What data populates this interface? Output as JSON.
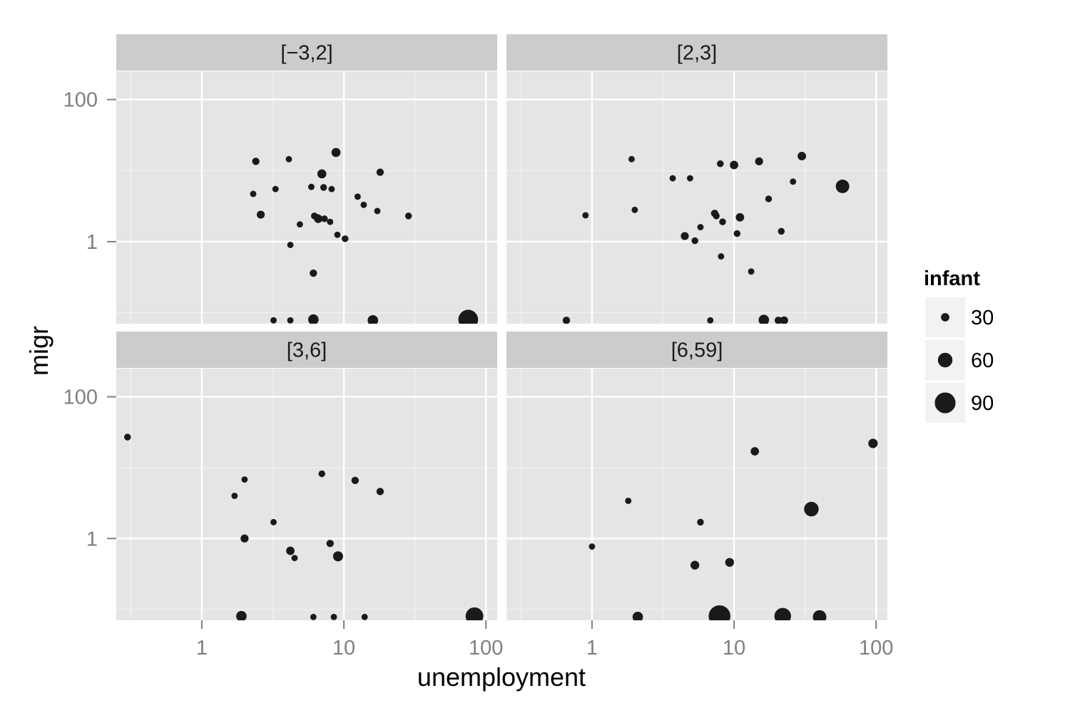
{
  "chart_data": {
    "type": "scatter",
    "xlabel": "unemployment",
    "ylabel": "migr",
    "xscale": "log10",
    "yscale": "log10",
    "xlim": [
      0.25,
      120
    ],
    "ylim": [
      0.07,
      250
    ],
    "x_ticks": [
      {
        "value": 1,
        "label": "1"
      },
      {
        "value": 10,
        "label": "10"
      },
      {
        "value": 100,
        "label": "100"
      }
    ],
    "y_ticks": [
      {
        "value": 1,
        "label": "1"
      },
      {
        "value": 100,
        "label": "100"
      }
    ],
    "grid": true,
    "panel_background": "#e5e5e5",
    "strip_background": "#cccccc",
    "point_color": "#1a1a1a",
    "legend": {
      "title": "infant",
      "position": "right",
      "size_domain": [
        10,
        100
      ],
      "entries": [
        {
          "value": 30,
          "label": "30"
        },
        {
          "value": 60,
          "label": "60"
        },
        {
          "value": 90,
          "label": "90"
        }
      ]
    },
    "facets": [
      {
        "label": "[−3,2]",
        "points": [
          {
            "x": 2.4,
            "y": 13.5,
            "infant": 25
          },
          {
            "x": 4.1,
            "y": 14.5,
            "infant": 20
          },
          {
            "x": 8.8,
            "y": 18,
            "infant": 33
          },
          {
            "x": 18,
            "y": 9.5,
            "infant": 25
          },
          {
            "x": 7,
            "y": 9,
            "infant": 33
          },
          {
            "x": 3.3,
            "y": 5.5,
            "infant": 20
          },
          {
            "x": 2.3,
            "y": 4.7,
            "infant": 20
          },
          {
            "x": 5.9,
            "y": 5.9,
            "infant": 20
          },
          {
            "x": 7.2,
            "y": 5.8,
            "infant": 22
          },
          {
            "x": 8.2,
            "y": 5.5,
            "infant": 20
          },
          {
            "x": 12.5,
            "y": 4.3,
            "infant": 20
          },
          {
            "x": 13.8,
            "y": 3.3,
            "infant": 20
          },
          {
            "x": 17.2,
            "y": 2.7,
            "infant": 20
          },
          {
            "x": 28.5,
            "y": 2.3,
            "infant": 22
          },
          {
            "x": 2.6,
            "y": 2.4,
            "infant": 28
          },
          {
            "x": 6.2,
            "y": 2.3,
            "infant": 22
          },
          {
            "x": 6.6,
            "y": 2.1,
            "infant": 30
          },
          {
            "x": 6.5,
            "y": 2.2,
            "infant": 22
          },
          {
            "x": 7.3,
            "y": 2.1,
            "infant": 22
          },
          {
            "x": 8,
            "y": 1.9,
            "infant": 20
          },
          {
            "x": 4.9,
            "y": 1.75,
            "infant": 20
          },
          {
            "x": 9,
            "y": 1.25,
            "infant": 20
          },
          {
            "x": 10.2,
            "y": 1.1,
            "infant": 22
          },
          {
            "x": 4.2,
            "y": 0.9,
            "infant": 20
          },
          {
            "x": 6.1,
            "y": 0.36,
            "infant": 25
          },
          {
            "x": 3.2,
            "y": 0.078,
            "infant": 20
          },
          {
            "x": 4.2,
            "y": 0.078,
            "infant": 20
          },
          {
            "x": 6.1,
            "y": 0.08,
            "infant": 40
          },
          {
            "x": 16,
            "y": 0.078,
            "infant": 40
          },
          {
            "x": 75,
            "y": 0.08,
            "infant": 85
          }
        ]
      },
      {
        "label": "[2,3]",
        "points": [
          {
            "x": 1.9,
            "y": 14.5,
            "infant": 20
          },
          {
            "x": 30,
            "y": 16,
            "infant": 30
          },
          {
            "x": 15,
            "y": 13.5,
            "infant": 28
          },
          {
            "x": 8,
            "y": 12.5,
            "infant": 22
          },
          {
            "x": 10,
            "y": 12,
            "infant": 30
          },
          {
            "x": 3.7,
            "y": 7.8,
            "infant": 20
          },
          {
            "x": 4.9,
            "y": 7.8,
            "infant": 20
          },
          {
            "x": 26,
            "y": 7,
            "infant": 20
          },
          {
            "x": 58,
            "y": 6,
            "infant": 55
          },
          {
            "x": 17.5,
            "y": 4,
            "infant": 22
          },
          {
            "x": 2,
            "y": 2.8,
            "infant": 20
          },
          {
            "x": 0.9,
            "y": 2.35,
            "infant": 20
          },
          {
            "x": 7.3,
            "y": 2.5,
            "infant": 25
          },
          {
            "x": 7.5,
            "y": 2.3,
            "infant": 22
          },
          {
            "x": 11,
            "y": 2.2,
            "infant": 30
          },
          {
            "x": 8.3,
            "y": 1.9,
            "infant": 22
          },
          {
            "x": 5.8,
            "y": 1.6,
            "infant": 20
          },
          {
            "x": 21.5,
            "y": 1.4,
            "infant": 22
          },
          {
            "x": 10.5,
            "y": 1.3,
            "infant": 22
          },
          {
            "x": 4.5,
            "y": 1.2,
            "infant": 28
          },
          {
            "x": 5.3,
            "y": 1.03,
            "infant": 22
          },
          {
            "x": 8.1,
            "y": 0.62,
            "infant": 20
          },
          {
            "x": 13.2,
            "y": 0.38,
            "infant": 20
          },
          {
            "x": 0.66,
            "y": 0.078,
            "infant": 25
          },
          {
            "x": 6.8,
            "y": 0.078,
            "infant": 20
          },
          {
            "x": 16.2,
            "y": 0.079,
            "infant": 40
          },
          {
            "x": 20.5,
            "y": 0.078,
            "infant": 25
          },
          {
            "x": 22.5,
            "y": 0.078,
            "infant": 28
          }
        ]
      },
      {
        "label": "[3,6]",
        "points": [
          {
            "x": 0.3,
            "y": 27,
            "infant": 22
          },
          {
            "x": 7,
            "y": 8.2,
            "infant": 22
          },
          {
            "x": 2,
            "y": 6.8,
            "infant": 20
          },
          {
            "x": 12,
            "y": 6.6,
            "infant": 25
          },
          {
            "x": 18,
            "y": 4.6,
            "infant": 25
          },
          {
            "x": 1.7,
            "y": 4,
            "infant": 20
          },
          {
            "x": 3.2,
            "y": 1.7,
            "infant": 20
          },
          {
            "x": 2,
            "y": 1,
            "infant": 28
          },
          {
            "x": 8,
            "y": 0.85,
            "infant": 25
          },
          {
            "x": 4.2,
            "y": 0.67,
            "infant": 30
          },
          {
            "x": 4.5,
            "y": 0.53,
            "infant": 20
          },
          {
            "x": 9.1,
            "y": 0.56,
            "infant": 38
          },
          {
            "x": 1.9,
            "y": 0.08,
            "infant": 40
          },
          {
            "x": 6.1,
            "y": 0.078,
            "infant": 20
          },
          {
            "x": 8.5,
            "y": 0.078,
            "infant": 20
          },
          {
            "x": 14,
            "y": 0.078,
            "infant": 20
          },
          {
            "x": 83,
            "y": 0.08,
            "infant": 75
          }
        ]
      },
      {
        "label": "[6,59]",
        "points": [
          {
            "x": 95,
            "y": 22,
            "infant": 35
          },
          {
            "x": 14,
            "y": 17,
            "infant": 30
          },
          {
            "x": 1.8,
            "y": 3.4,
            "infant": 20
          },
          {
            "x": 35,
            "y": 2.6,
            "infant": 60
          },
          {
            "x": 5.8,
            "y": 1.7,
            "infant": 22
          },
          {
            "x": 1,
            "y": 0.77,
            "infant": 20
          },
          {
            "x": 5.3,
            "y": 0.42,
            "infant": 32
          },
          {
            "x": 9.3,
            "y": 0.46,
            "infant": 32
          },
          {
            "x": 2.1,
            "y": 0.078,
            "infant": 40
          },
          {
            "x": 7.9,
            "y": 0.08,
            "infant": 95
          },
          {
            "x": 22,
            "y": 0.08,
            "infant": 70
          },
          {
            "x": 40,
            "y": 0.078,
            "infant": 55
          }
        ]
      }
    ]
  }
}
